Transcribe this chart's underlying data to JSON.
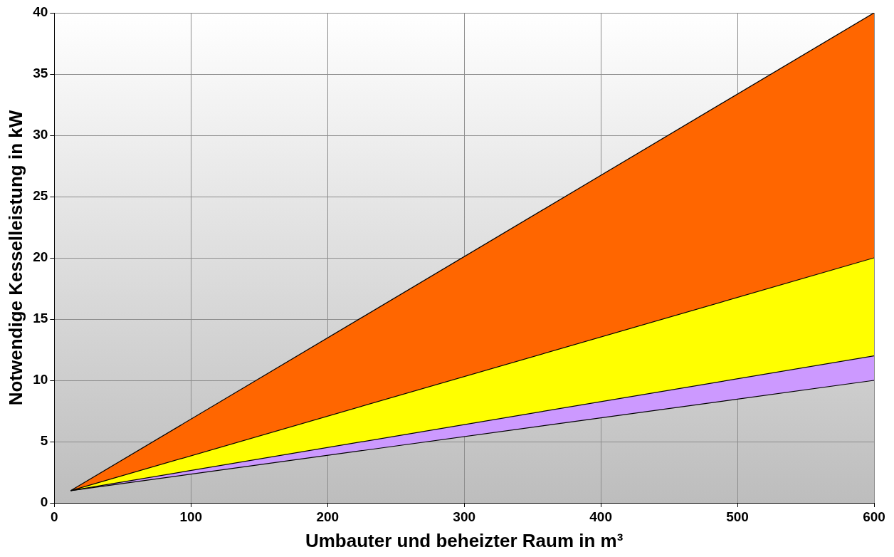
{
  "chart_data": {
    "type": "area",
    "xlabel": "Umbauter und beheizter Raum in m³",
    "ylabel": "Notwendige Kesselleistung in kW",
    "x": [
      12,
      600
    ],
    "series": [
      {
        "type": "line",
        "color": "#000000",
        "values": [
          1,
          10
        ]
      },
      {
        "type": "area",
        "color": "#cc99ff",
        "values": [
          1,
          12
        ]
      },
      {
        "type": "area",
        "color": "#ffff00",
        "values": [
          1,
          20
        ]
      },
      {
        "type": "area",
        "color": "#ff6600",
        "values": [
          1,
          40
        ]
      }
    ],
    "xlim": [
      0,
      600
    ],
    "xticks": [
      0,
      100,
      200,
      300,
      400,
      500,
      600
    ],
    "ylim": [
      0,
      40
    ],
    "yticks": [
      0,
      5,
      10,
      15,
      20,
      25,
      30,
      35,
      40
    ],
    "grid": true,
    "marker": "none",
    "line_style": "solid"
  }
}
